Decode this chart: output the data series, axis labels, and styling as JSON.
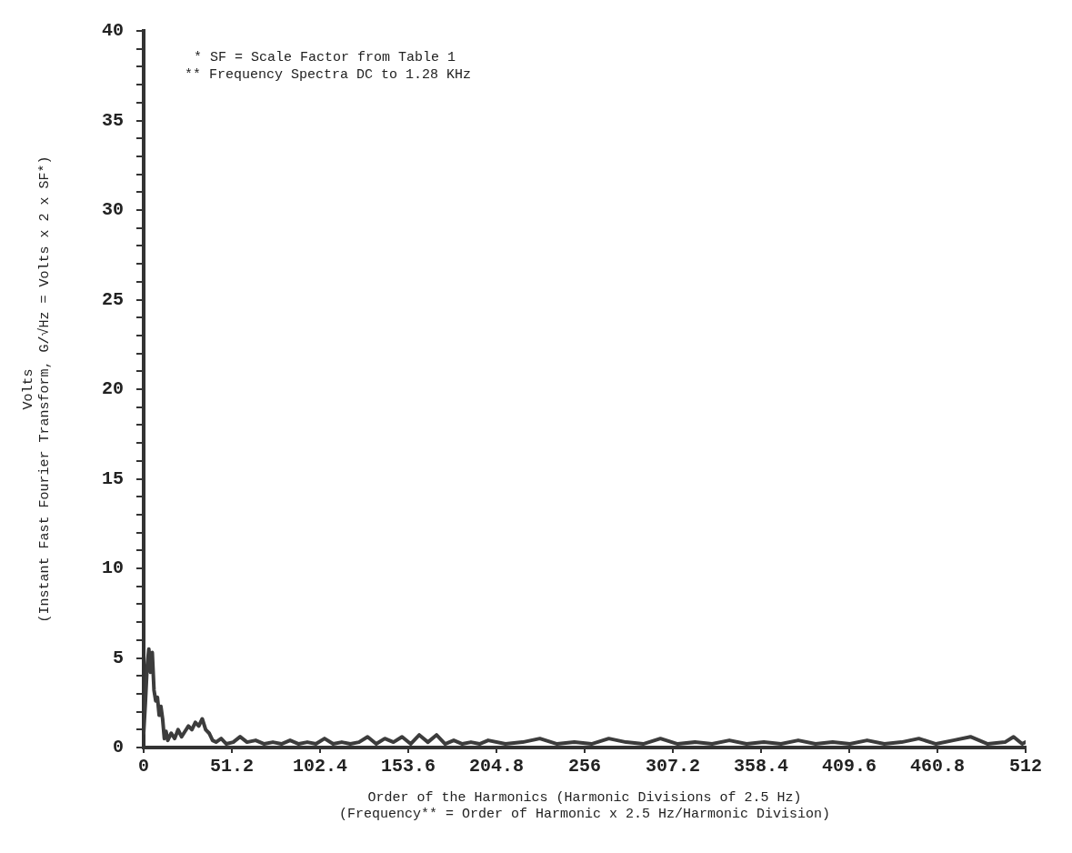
{
  "chart_data": {
    "type": "line",
    "xlabel": "Order of the Harmonics (Harmonic Divisions of 2.5 Hz)\n(Frequency** = Order of Harmonic x 2.5 Hz/Harmonic Division)",
    "ylabel": "Volts\n(Instant Fast Fourier Transform, G/√Hz = Volts x 2 x SF*)",
    "annotations": [
      "* SF = Scale Factor from Table 1",
      "** Frequency Spectra DC to 1.28 KHz"
    ],
    "series": [
      {
        "color": "#3c3c3c",
        "x": [
          0,
          1,
          2,
          3,
          4,
          5,
          6,
          7,
          8,
          9,
          10,
          11,
          12,
          13,
          14,
          16,
          18,
          20,
          22,
          24,
          26,
          28,
          30,
          32,
          34,
          36,
          38,
          40,
          42,
          45,
          48,
          52,
          56,
          60,
          65,
          70,
          75,
          80,
          85,
          90,
          95,
          100,
          105,
          110,
          115,
          120,
          125,
          130,
          135,
          140,
          145,
          150,
          155,
          160,
          165,
          170,
          175,
          180,
          185,
          190,
          195,
          200,
          210,
          220,
          230,
          240,
          250,
          260,
          270,
          280,
          290,
          300,
          310,
          320,
          330,
          340,
          350,
          360,
          370,
          380,
          390,
          400,
          410,
          420,
          430,
          440,
          450,
          460,
          470,
          480,
          490,
          500,
          505,
          510,
          512
        ],
        "values": [
          0.8,
          2.5,
          4.5,
          5.5,
          4.2,
          5.3,
          3.2,
          2.6,
          2.8,
          1.8,
          2.3,
          1.6,
          0.5,
          0.9,
          0.4,
          0.8,
          0.5,
          1.0,
          0.6,
          0.9,
          1.2,
          1.0,
          1.4,
          1.2,
          1.6,
          1.0,
          0.8,
          0.4,
          0.3,
          0.5,
          0.2,
          0.3,
          0.6,
          0.3,
          0.4,
          0.2,
          0.3,
          0.2,
          0.4,
          0.2,
          0.3,
          0.2,
          0.5,
          0.2,
          0.3,
          0.2,
          0.3,
          0.6,
          0.2,
          0.5,
          0.3,
          0.6,
          0.2,
          0.7,
          0.3,
          0.7,
          0.2,
          0.4,
          0.2,
          0.3,
          0.2,
          0.4,
          0.2,
          0.3,
          0.5,
          0.2,
          0.3,
          0.2,
          0.5,
          0.3,
          0.2,
          0.5,
          0.2,
          0.3,
          0.2,
          0.4,
          0.2,
          0.3,
          0.2,
          0.4,
          0.2,
          0.3,
          0.2,
          0.4,
          0.2,
          0.3,
          0.5,
          0.2,
          0.4,
          0.6,
          0.2,
          0.3,
          0.6,
          0.2,
          0.3
        ]
      }
    ],
    "xlim": [
      0,
      512
    ],
    "xticks": [
      0,
      51.2,
      102.4,
      153.6,
      204.8,
      256,
      307.2,
      358.4,
      409.6,
      460.8,
      512
    ],
    "ylim": [
      0,
      40
    ],
    "yticks": [
      0,
      {
        "value": 1,
        "label": null
      },
      {
        "value": 2,
        "label": null
      },
      {
        "value": 3,
        "label": null
      },
      {
        "value": 4,
        "label": null
      },
      5,
      {
        "value": 6,
        "label": null
      },
      {
        "value": 7,
        "label": null
      },
      {
        "value": 8,
        "label": null
      },
      {
        "value": 9,
        "label": null
      },
      10,
      {
        "value": 11,
        "label": null
      },
      {
        "value": 12,
        "label": null
      },
      {
        "value": 13,
        "label": null
      },
      {
        "value": 14,
        "label": null
      },
      15,
      {
        "value": 16,
        "label": null
      },
      {
        "value": 17,
        "label": null
      },
      {
        "value": 18,
        "label": null
      },
      {
        "value": 19,
        "label": null
      },
      20,
      {
        "value": 21,
        "label": null
      },
      {
        "value": 22,
        "label": null
      },
      {
        "value": 23,
        "label": null
      },
      {
        "value": 24,
        "label": null
      },
      25,
      {
        "value": 26,
        "label": null
      },
      {
        "value": 27,
        "label": null
      },
      {
        "value": 28,
        "label": null
      },
      {
        "value": 29,
        "label": null
      },
      30,
      {
        "value": 31,
        "label": null
      },
      {
        "value": 32,
        "label": null
      },
      {
        "value": 33,
        "label": null
      },
      {
        "value": 34,
        "label": null
      },
      35,
      {
        "value": 36,
        "label": null
      },
      {
        "value": 37,
        "label": null
      },
      {
        "value": 38,
        "label": null
      },
      {
        "value": 39,
        "label": null
      },
      40
    ],
    "grid": false,
    "legend": false,
    "marker": "none",
    "line_style": "solid"
  }
}
